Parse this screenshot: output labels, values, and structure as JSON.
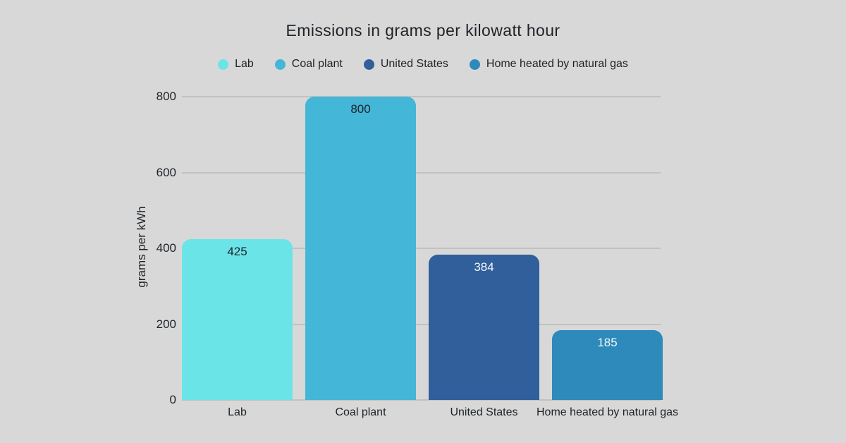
{
  "title": "Emissions in grams per kilowatt hour",
  "chart_data": {
    "type": "bar",
    "title": "Emissions in grams per kilowatt hour",
    "categories": [
      "Lab",
      "Coal plant",
      "United States",
      "Home heated by natural gas"
    ],
    "values": [
      425,
      800,
      384,
      185
    ],
    "value_labels": [
      "425",
      "800",
      "384",
      "185"
    ],
    "bar_colors": [
      "#6be4e8",
      "#44b6d8",
      "#305f9b",
      "#2d8aba"
    ],
    "value_label_colors": [
      "#1e2328",
      "#1e2328",
      "#f7f7f7",
      "#f7f7f7"
    ],
    "xlabel": "",
    "ylabel": "grams per kWh",
    "ylim": [
      0,
      800
    ],
    "yticks": [
      0,
      200,
      400,
      600,
      800
    ],
    "grid": true,
    "legend_position": "top",
    "legend": [
      {
        "label": "Lab",
        "color": "#6be4e8"
      },
      {
        "label": "Coal plant",
        "color": "#44b6d8"
      },
      {
        "label": "United States",
        "color": "#305f9b"
      },
      {
        "label": "Home heated by natural gas",
        "color": "#2d8aba"
      }
    ]
  },
  "colors": {
    "background": "#d8d8d8",
    "gridline": "#c1c1c1",
    "text": "#1e2328"
  }
}
